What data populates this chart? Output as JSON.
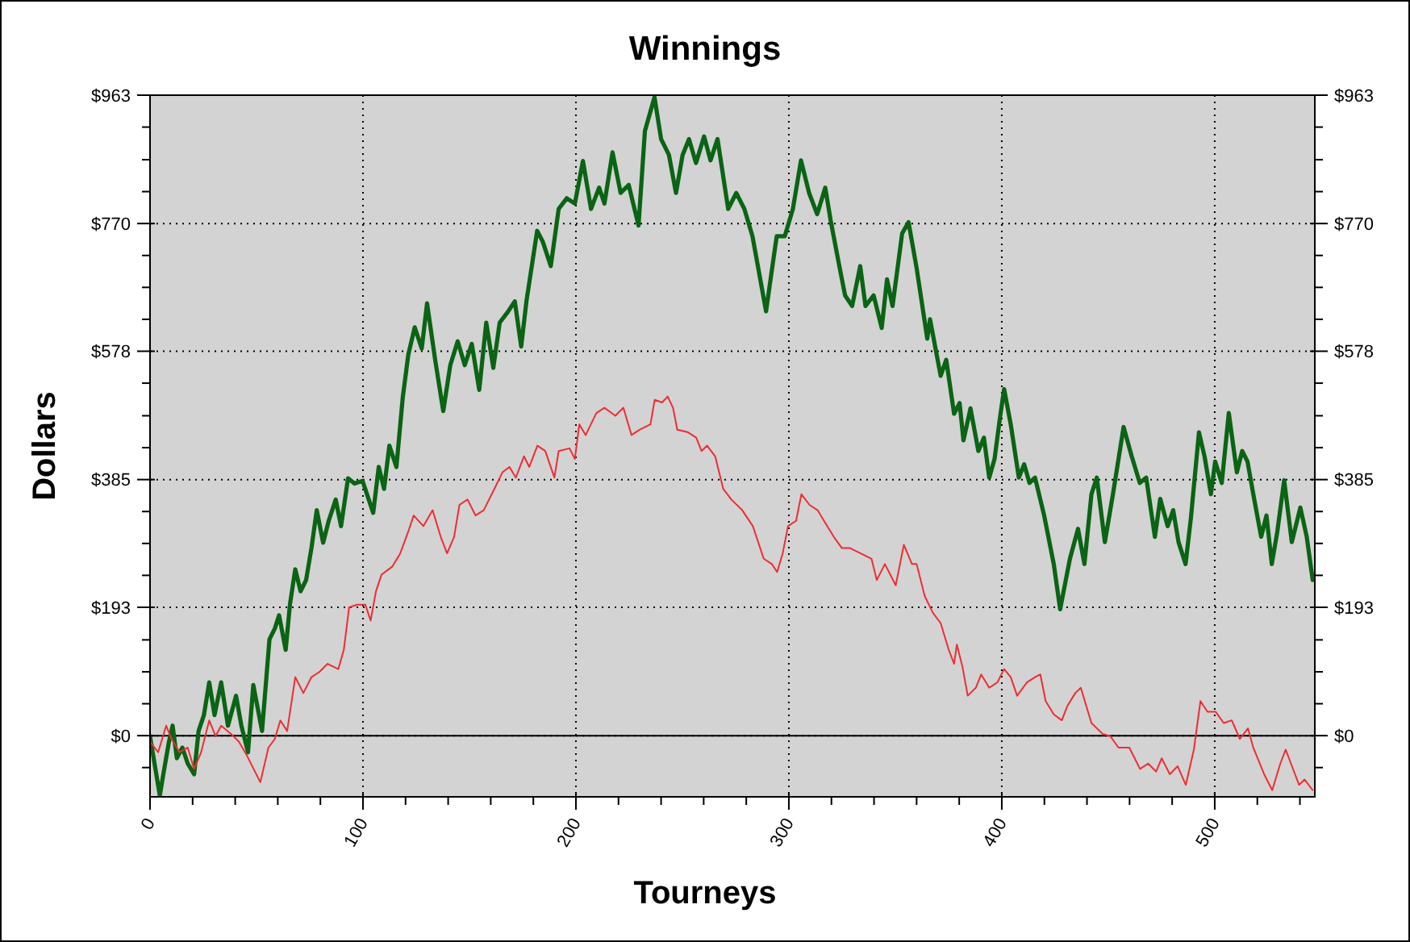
{
  "chart_data": {
    "type": "line",
    "title": "Winnings",
    "xlabel": "Tourneys",
    "ylabel": "Dollars",
    "xlim": [
      0,
      547
    ],
    "ylim": [
      -92,
      963
    ],
    "y2lim": [
      -92,
      963
    ],
    "xticks": [
      0,
      {
        "value": 20,
        "label": null
      },
      {
        "value": 40,
        "label": null
      },
      {
        "value": 60,
        "label": null
      },
      {
        "value": 80,
        "label": null
      },
      100,
      {
        "value": 120,
        "label": null
      },
      {
        "value": 140,
        "label": null
      },
      {
        "value": 160,
        "label": null
      },
      {
        "value": 180,
        "label": null
      },
      200,
      {
        "value": 220,
        "label": null
      },
      {
        "value": 240,
        "label": null
      },
      {
        "value": 260,
        "label": null
      },
      {
        "value": 280,
        "label": null
      },
      300,
      {
        "value": 320,
        "label": null
      },
      {
        "value": 340,
        "label": null
      },
      {
        "value": 360,
        "label": null
      },
      {
        "value": 380,
        "label": null
      },
      400,
      {
        "value": 420,
        "label": null
      },
      {
        "value": 440,
        "label": null
      },
      {
        "value": 460,
        "label": null
      },
      {
        "value": 480,
        "label": null
      },
      500,
      {
        "value": 520,
        "label": null
      },
      {
        "value": 540,
        "label": null
      }
    ],
    "yticks": [
      {
        "value": -48,
        "label": null
      },
      {
        "value": 0,
        "label": "$0"
      },
      {
        "value": 48,
        "label": null
      },
      {
        "value": 96,
        "label": null
      },
      {
        "value": 144,
        "label": null
      },
      {
        "value": 193,
        "label": "$193"
      },
      {
        "value": 241,
        "label": null
      },
      {
        "value": 289,
        "label": null
      },
      {
        "value": 337,
        "label": null
      },
      {
        "value": 385,
        "label": "$385"
      },
      {
        "value": 433,
        "label": null
      },
      {
        "value": 481,
        "label": null
      },
      {
        "value": 530,
        "label": null
      },
      {
        "value": 578,
        "label": "$578"
      },
      {
        "value": 626,
        "label": null
      },
      {
        "value": 674,
        "label": null
      },
      {
        "value": 722,
        "label": null
      },
      {
        "value": 770,
        "label": "$770"
      },
      {
        "value": 818,
        "label": null
      },
      {
        "value": 866,
        "label": null
      },
      {
        "value": 915,
        "label": null
      },
      {
        "value": 963,
        "label": "$963"
      }
    ],
    "y2ticks": [
      {
        "value": -48,
        "label": null
      },
      {
        "value": 0,
        "label": "$0"
      },
      {
        "value": 48,
        "label": null
      },
      {
        "value": 96,
        "label": null
      },
      {
        "value": 144,
        "label": null
      },
      {
        "value": 193,
        "label": "$193"
      },
      {
        "value": 241,
        "label": null
      },
      {
        "value": 289,
        "label": null
      },
      {
        "value": 337,
        "label": null
      },
      {
        "value": 385,
        "label": "$385"
      },
      {
        "value": 433,
        "label": null
      },
      {
        "value": 481,
        "label": null
      },
      {
        "value": 530,
        "label": null
      },
      {
        "value": 578,
        "label": "$578"
      },
      {
        "value": 626,
        "label": null
      },
      {
        "value": 674,
        "label": null
      },
      {
        "value": 722,
        "label": null
      },
      {
        "value": 770,
        "label": "$770"
      },
      {
        "value": 818,
        "label": null
      },
      {
        "value": 866,
        "label": null
      },
      {
        "value": 915,
        "label": null
      },
      {
        "value": 963,
        "label": "$963"
      }
    ],
    "grid": true,
    "ref_lines": [
      {
        "axis": "y",
        "value": 0,
        "color": "#000000",
        "line_style": "solid"
      }
    ],
    "series": [
      {
        "color": "#0a6414",
        "x": [
          0,
          4.6,
          6.3,
          8.9,
          10.6,
          12.6,
          15.2,
          17.7,
          20.7,
          22.8,
          25.3,
          27.8,
          30.3,
          33.4,
          36.6,
          40.4,
          42.9,
          46,
          48.5,
          52.6,
          56.1,
          58.6,
          60.6,
          63.7,
          65.7,
          68.2,
          70.7,
          73.3,
          75.8,
          78.3,
          81.3,
          83.9,
          87.2,
          89.7,
          93,
          96,
          99.8,
          104.8,
          107.4,
          109.9,
          112.4,
          115.7,
          118.7,
          121.3,
          124.3,
          127.6,
          130.1,
          133.9,
          137.7,
          141,
          144.5,
          147.8,
          151.1,
          154.6,
          157.9,
          161.2,
          164.2,
          168,
          171.3,
          174.3,
          176.8,
          181.8,
          184.4,
          188.2,
          191.9,
          195.7,
          199.5,
          203.3,
          207.1,
          210.9,
          213.4,
          217.2,
          221,
          224.8,
          229.4,
          232.4,
          236.9,
          240,
          243.7,
          247,
          250.1,
          253.1,
          256.4,
          260.2,
          263.2,
          266.5,
          271.5,
          275.3,
          279.1,
          282.9,
          289.3,
          291.8,
          294.3,
          298.1,
          301.9,
          305.7,
          309.5,
          313.3,
          317.1,
          319.6,
          323.4,
          326.4,
          329.7,
          333.5,
          336,
          339.8,
          343.6,
          346.1,
          348.7,
          353.2,
          356.2,
          360,
          365,
          366.3,
          371.3,
          373.9,
          377.6,
          380.2,
          382,
          385.3,
          389,
          391.6,
          394.1,
          396.6,
          399.1,
          401.1,
          404.2,
          408,
          410.5,
          413,
          415.6,
          419.9,
          424.4,
          427.4,
          432,
          435.8,
          438.8,
          442.1,
          444.6,
          448.4,
          452.2,
          457.2,
          461,
          464.8,
          467.8,
          471.9,
          474.4,
          477.9,
          480.5,
          483,
          486.3,
          488.8,
          492.6,
          495.2,
          498.2,
          500.2,
          503.3,
          506.6,
          510.4,
          512.9,
          515.4,
          518.5,
          521.8,
          524.3,
          526.8,
          529.4,
          532.6,
          536.2,
          540.2,
          543.2,
          546
        ],
        "values": [
          -1,
          -90,
          -57,
          -9,
          15,
          -34,
          -18,
          -42,
          -58,
          7,
          31,
          80,
          31,
          80,
          15,
          60,
          15,
          -25,
          76,
          7,
          145,
          161,
          181,
          129,
          197,
          250,
          217,
          234,
          282,
          339,
          290,
          323,
          355,
          315,
          387,
          379,
          383,
          335,
          404,
          371,
          436,
          404,
          509,
          573,
          614,
          582,
          650,
          565,
          488,
          557,
          593,
          557,
          589,
          520,
          621,
          553,
          621,
          637,
          653,
          585,
          654,
          759,
          743,
          706,
          792,
          808,
          800,
          864,
          792,
          824,
          800,
          877,
          816,
          828,
          767,
          909,
          960,
          897,
          873,
          816,
          873,
          897,
          861,
          901,
          865,
          897,
          792,
          816,
          792,
          751,
          638,
          695,
          751,
          751,
          792,
          865,
          816,
          784,
          824,
          775,
          711,
          662,
          646,
          706,
          646,
          662,
          613,
          686,
          646,
          755,
          772,
          703,
          597,
          626,
          541,
          565,
          484,
          500,
          444,
          492,
          428,
          448,
          388,
          416,
          477,
          521,
          468,
          388,
          408,
          380,
          388,
          331,
          258,
          190,
          266,
          311,
          258,
          363,
          388,
          291,
          363,
          464,
          420,
          380,
          388,
          299,
          356,
          315,
          339,
          291,
          258,
          327,
          456,
          420,
          363,
          412,
          380,
          485,
          396,
          428,
          412,
          356,
          299,
          331,
          258,
          307,
          384,
          291,
          343,
          299,
          234
        ]
      },
      {
        "color": "#ee2d32",
        "x": [
          0,
          3.8,
          7.6,
          10.1,
          13.9,
          17.7,
          20.7,
          24,
          27.8,
          30.8,
          33.4,
          37.9,
          41.7,
          45.5,
          51.8,
          55.6,
          58.6,
          61.2,
          64.4,
          68.2,
          72,
          75.8,
          79.6,
          83.4,
          88.4,
          91,
          93.5,
          97.3,
          101.1,
          103.6,
          106.1,
          108.7,
          113.7,
          117.5,
          121.3,
          123.8,
          128.4,
          132.7,
          136.5,
          139.5,
          142.8,
          145.3,
          149.1,
          152.9,
          156.7,
          161.7,
          165.5,
          168.8,
          171.8,
          175.6,
          178.1,
          181.9,
          185.6,
          189.9,
          191.9,
          197,
          199.5,
          201.6,
          204.6,
          209.6,
          213.4,
          218.5,
          222.3,
          226.1,
          229.9,
          235,
          237,
          240.5,
          243.1,
          245.6,
          247.6,
          252.7,
          256.5,
          259,
          261.6,
          265.4,
          269.2,
          273,
          278.1,
          283.1,
          288.2,
          292,
          294.5,
          297.1,
          299.6,
          303.4,
          305.9,
          309.7,
          313.5,
          316.5,
          321.1,
          324.9,
          328.7,
          333.7,
          338.8,
          341.3,
          345.1,
          350.2,
          354,
          357.8,
          360,
          363.8,
          367.6,
          371.3,
          375.1,
          377.6,
          378.9,
          381.5,
          384,
          387.8,
          390.3,
          394.1,
          397.9,
          401.1,
          404.2,
          407.2,
          411.8,
          415.6,
          418.1,
          420.6,
          424.4,
          428.2,
          430.7,
          434.5,
          437.1,
          442.1,
          447.2,
          451,
          454.8,
          459.9,
          464.9,
          468.7,
          472.5,
          475.1,
          478.9,
          482.6,
          486.4,
          490.2,
          493.3,
          496.6,
          500.4,
          504.2,
          508,
          511.8,
          515.6,
          518.1,
          523.2,
          527,
          530.8,
          533.3,
          535.8,
          539.6,
          542.2,
          546
        ],
        "values": [
          -9,
          -25,
          15,
          -5,
          -25,
          -18,
          -50,
          -25,
          23,
          -1,
          15,
          3,
          -9,
          -30,
          -70,
          -18,
          -5,
          23,
          7,
          88,
          64,
          88,
          96,
          108,
          100,
          129,
          193,
          197,
          197,
          173,
          217,
          242,
          254,
          274,
          307,
          331,
          315,
          339,
          299,
          274,
          299,
          347,
          355,
          331,
          339,
          371,
          396,
          404,
          388,
          420,
          404,
          436,
          428,
          388,
          428,
          432,
          416,
          468,
          452,
          485,
          493,
          481,
          493,
          452,
          460,
          468,
          505,
          501,
          510,
          493,
          460,
          456,
          448,
          428,
          436,
          420,
          371,
          355,
          339,
          315,
          266,
          258,
          246,
          274,
          315,
          323,
          363,
          347,
          339,
          323,
          299,
          282,
          282,
          274,
          266,
          234,
          258,
          226,
          287,
          258,
          258,
          210,
          185,
          169,
          129,
          108,
          137,
          104,
          60,
          72,
          92,
          72,
          80,
          100,
          88,
          60,
          80,
          88,
          92,
          52,
          32,
          23,
          44,
          64,
          72,
          19,
          3,
          -1,
          -18,
          -18,
          -50,
          -42,
          -54,
          -34,
          -58,
          -46,
          -74,
          -21,
          52,
          36,
          36,
          19,
          23,
          -5,
          11,
          -18,
          -58,
          -82,
          -42,
          -21,
          -42,
          -74,
          -66,
          -82
        ]
      }
    ]
  }
}
